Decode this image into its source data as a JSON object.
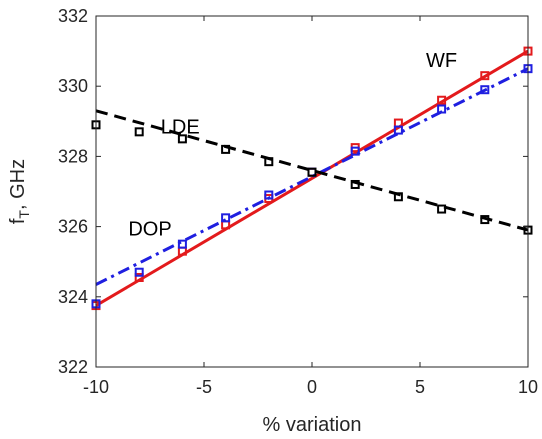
{
  "chart_data": {
    "type": "line",
    "xlabel": "% variation",
    "ylabel_main": "f",
    "ylabel_sub": "T",
    "ylabel_rest": ", GHz",
    "xlim": [
      -10,
      10
    ],
    "ylim": [
      322,
      332
    ],
    "xticks": [
      -10,
      -5,
      0,
      5,
      10
    ],
    "yticks": [
      322,
      324,
      326,
      328,
      330,
      332
    ],
    "grid": false,
    "series": [
      {
        "name": "WF",
        "color": "#e31a1c",
        "line_style": "solid",
        "fit": [
          [
            -10,
            323.75
          ],
          [
            10,
            331.0
          ]
        ],
        "x": [
          -10,
          -8,
          -6,
          -4,
          -2,
          0,
          2,
          4,
          6,
          8,
          10
        ],
        "y": [
          323.75,
          324.55,
          325.3,
          326.05,
          326.8,
          327.55,
          328.25,
          328.95,
          329.6,
          330.3,
          331.0
        ]
      },
      {
        "name": "DOP",
        "color": "#1f1fe0",
        "line_style": "dashdot",
        "fit": [
          [
            -10,
            324.35
          ],
          [
            10,
            330.5
          ]
        ],
        "x": [
          -10,
          -8,
          -6,
          -4,
          -2,
          0,
          2,
          4,
          6,
          8,
          10
        ],
        "y": [
          323.8,
          324.7,
          325.5,
          326.25,
          326.9,
          327.55,
          328.15,
          328.75,
          329.35,
          329.9,
          330.5
        ]
      },
      {
        "name": "LDE",
        "color": "#000000",
        "line_style": "dashed",
        "fit": [
          [
            -10,
            329.3
          ],
          [
            10,
            325.9
          ]
        ],
        "x": [
          -10,
          -8,
          -6,
          -4,
          -2,
          0,
          2,
          4,
          6,
          8,
          10
        ],
        "y": [
          328.9,
          328.7,
          328.5,
          328.2,
          327.85,
          327.55,
          327.2,
          326.85,
          326.5,
          326.2,
          325.9
        ]
      }
    ],
    "annotations": [
      {
        "text": "WF",
        "x": 6.0,
        "y": 330.75
      },
      {
        "text": "LDE",
        "x": -6.1,
        "y": 328.85
      },
      {
        "text": "DOP",
        "x": -7.5,
        "y": 325.95
      }
    ]
  }
}
